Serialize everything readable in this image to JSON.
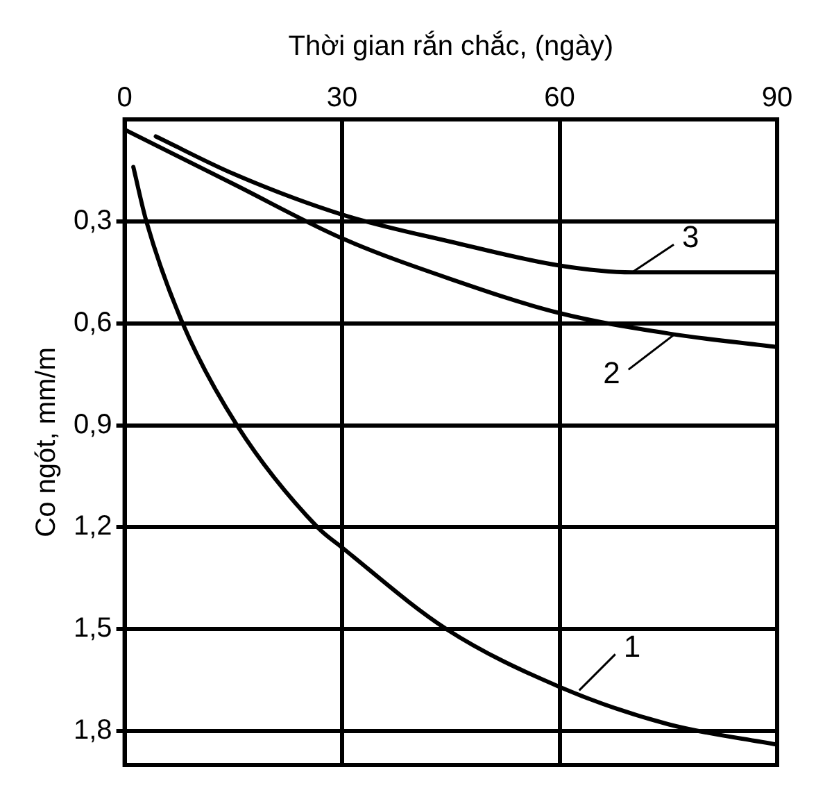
{
  "chart_data": {
    "type": "line",
    "xlabel": "Thời gian rắn chắc, (ngày)",
    "ylabel": "Co ngót, mm/m",
    "xlim": [
      0,
      90
    ],
    "xticks": [
      0,
      30,
      60,
      90
    ],
    "ylim": [
      1.9,
      0
    ],
    "yticks": [
      {
        "value": 0.3,
        "label": "0,3"
      },
      {
        "value": 0.6,
        "label": "0,6"
      },
      {
        "value": 0.9,
        "label": "0,9"
      },
      {
        "value": 1.2,
        "label": "1,2"
      },
      {
        "value": 1.5,
        "label": "1,5"
      },
      {
        "value": 1.8,
        "label": "1,8"
      }
    ],
    "grid": true,
    "annotations": [
      {
        "text": "1",
        "x": 62.7,
        "y": 1.68
      },
      {
        "text": "2",
        "x": 76,
        "y": 0.63
      },
      {
        "text": "3",
        "x": 70,
        "y": 0.45
      }
    ],
    "marker": "none",
    "line_style": "solid",
    "series": [
      {
        "color": "#000000",
        "x": [
          1.2,
          3,
          8,
          15.5,
          26.6,
          30,
          44.4,
          60,
          75,
          90
        ],
        "values": [
          0.14,
          0.3,
          0.6,
          0.9,
          1.2,
          1.26,
          1.5,
          1.67,
          1.78,
          1.84
        ]
      },
      {
        "color": "#000000",
        "x": [
          0,
          15,
          30,
          45,
          60,
          75,
          90
        ],
        "values": [
          0.03,
          0.19,
          0.35,
          0.47,
          0.57,
          0.63,
          0.67
        ]
      },
      {
        "color": "#000000",
        "x": [
          4.3,
          15,
          30,
          45,
          60,
          70,
          90
        ],
        "values": [
          0.05,
          0.16,
          0.28,
          0.36,
          0.43,
          0.45,
          0.45
        ]
      }
    ]
  }
}
